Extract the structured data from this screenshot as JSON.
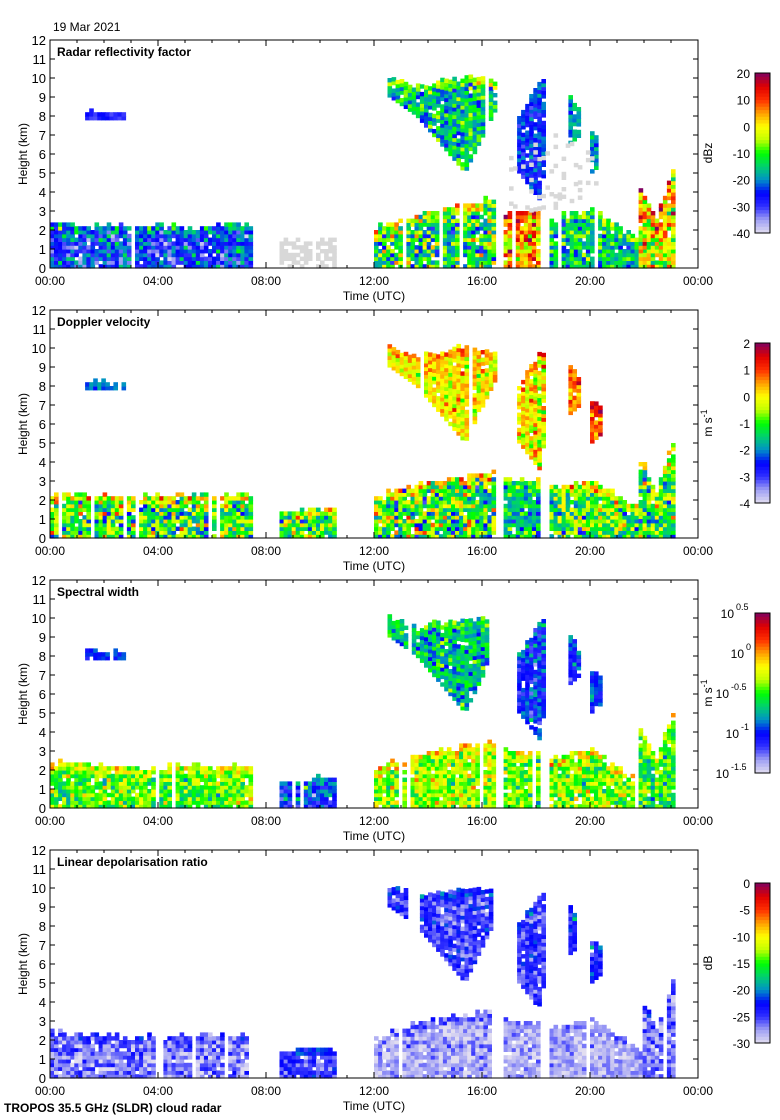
{
  "date": "19 Mar 2021",
  "footer": "TROPOS 35.5 GHz (SLDR) cloud radar",
  "colormap": [
    "#e2def0",
    "#a0a0f4",
    "#3030ff",
    "#0000ff",
    "#0090c8",
    "#00d070",
    "#00ff00",
    "#c0ff00",
    "#ffff00",
    "#ffa000",
    "#ff3000",
    "#e00000",
    "#800060"
  ],
  "no_signal_color": "#d8d8d8",
  "chart_data": [
    {
      "type": "heatmap",
      "title": "Radar reflectivity factor",
      "xlabel": "Time (UTC)",
      "ylabel": "Height (km)",
      "xlim": [
        0,
        24
      ],
      "ylim": [
        0,
        12
      ],
      "xticklabels": [
        "00:00",
        "04:00",
        "08:00",
        "12:00",
        "16:00",
        "20:00",
        "00:00"
      ],
      "yticklabels": [
        "0",
        "1",
        "2",
        "3",
        "4",
        "5",
        "6",
        "7",
        "8",
        "9",
        "10",
        "11",
        "12"
      ],
      "colorbar": {
        "unit": "dBz",
        "unit_sup": "",
        "range": [
          -40,
          20
        ],
        "ticklabels": [
          "20",
          "10",
          "0",
          "-10",
          "-20",
          "-30",
          "-40"
        ]
      },
      "var": "Z"
    },
    {
      "type": "heatmap",
      "title": "Doppler velocity",
      "xlabel": "Time (UTC)",
      "ylabel": "Height (km)",
      "xlim": [
        0,
        24
      ],
      "ylim": [
        0,
        12
      ],
      "xticklabels": [
        "00:00",
        "04:00",
        "08:00",
        "12:00",
        "16:00",
        "20:00",
        "00:00"
      ],
      "yticklabels": [
        "0",
        "1",
        "2",
        "3",
        "4",
        "5",
        "6",
        "7",
        "8",
        "9",
        "10",
        "11",
        "12"
      ],
      "colorbar": {
        "unit": "m s",
        "unit_sup": "-1",
        "range": [
          -4,
          2
        ],
        "ticklabels": [
          "2",
          "1",
          "0",
          "-1",
          "-2",
          "-3",
          "-4"
        ]
      },
      "var": "V"
    },
    {
      "type": "heatmap",
      "title": "Spectral width",
      "xlabel": "Time (UTC)",
      "ylabel": "Height (km)",
      "xlim": [
        0,
        24
      ],
      "ylim": [
        0,
        12
      ],
      "xticklabels": [
        "00:00",
        "04:00",
        "08:00",
        "12:00",
        "16:00",
        "20:00",
        "00:00"
      ],
      "yticklabels": [
        "0",
        "1",
        "2",
        "3",
        "4",
        "5",
        "6",
        "7",
        "8",
        "9",
        "10",
        "11",
        "12"
      ],
      "colorbar": {
        "unit": "m s",
        "unit_sup": "-1",
        "scale": "log10",
        "range": [
          -1.5,
          0.5
        ],
        "ticklabels": [
          "0.5",
          "0",
          "-0.5",
          "-1",
          "-1.5"
        ],
        "tickbase": "10"
      },
      "var": "W"
    },
    {
      "type": "heatmap",
      "title": "Linear depolarisation ratio",
      "xlabel": "Time (UTC)",
      "ylabel": "Height (km)",
      "xlim": [
        0,
        24
      ],
      "ylim": [
        0,
        12
      ],
      "xticklabels": [
        "00:00",
        "04:00",
        "08:00",
        "12:00",
        "16:00",
        "20:00",
        "00:00"
      ],
      "yticklabels": [
        "0",
        "1",
        "2",
        "3",
        "4",
        "5",
        "6",
        "7",
        "8",
        "9",
        "10",
        "11",
        "12"
      ],
      "colorbar": {
        "unit": "dB",
        "unit_sup": "",
        "range": [
          -30,
          0
        ],
        "ticklabels": [
          "0",
          "-5",
          "-10",
          "-15",
          "-20",
          "-25",
          "-30"
        ]
      },
      "var": "LDR"
    }
  ],
  "cloud_regions": [
    {
      "t": [
        0,
        7.5
      ],
      "base": [
        [
          0,
          0
        ],
        [
          7.5,
          0
        ]
      ],
      "top": [
        [
          0,
          2.3
        ],
        [
          3,
          2.1
        ],
        [
          7.5,
          2.2
        ]
      ],
      "Z": [
        -25,
        10
      ],
      "V": [
        -1,
        1.4
      ],
      "W": [
        -0.45,
        0.3
      ],
      "LDR": [
        -27,
        3
      ]
    },
    {
      "t": [
        1.3,
        2.7
      ],
      "base": [
        [
          1.3,
          7.8
        ],
        [
          2.7,
          7.8
        ]
      ],
      "top": [
        [
          1.3,
          8.2
        ],
        [
          2.7,
          8.1
        ]
      ],
      "Z": [
        -30,
        3
      ],
      "V": [
        -2.3,
        0.3
      ],
      "W": [
        -1.05,
        0.1
      ],
      "LDR": null
    },
    {
      "t": [
        8.5,
        10.5
      ],
      "base": [
        [
          8.5,
          0
        ],
        [
          10.5,
          0
        ]
      ],
      "top": [
        [
          8.5,
          1.4
        ],
        [
          10.5,
          1.5
        ]
      ],
      "Z": "no-signal",
      "V": [
        -1,
        1.2
      ],
      "W": [
        -1,
        0.3
      ],
      "LDR": [
        -25,
        3
      ]
    },
    {
      "t": [
        12,
        16.4
      ],
      "base": [
        [
          12,
          0
        ],
        [
          16.4,
          0
        ]
      ],
      "top": [
        [
          12,
          2.1
        ],
        [
          14,
          2.9
        ],
        [
          16.4,
          3.5
        ]
      ],
      "Z": [
        -12,
        14
      ],
      "V": [
        -1,
        1.5
      ],
      "W": [
        -0.35,
        0.3
      ],
      "LDR": [
        -28,
        3
      ]
    },
    {
      "t": [
        12.5,
        16.5
      ],
      "base": [
        [
          12.5,
          9
        ],
        [
          13.5,
          8
        ],
        [
          15.3,
          5
        ],
        [
          16.5,
          8.5
        ]
      ],
      "top": [
        [
          12.5,
          10
        ],
        [
          13.5,
          9.5
        ],
        [
          15.3,
          10
        ],
        [
          16.5,
          9.8
        ]
      ],
      "Z": [
        -15,
        10
      ],
      "V": [
        0,
        0.8
      ],
      "W": [
        -0.7,
        0.3
      ],
      "LDR": [
        -25,
        3
      ]
    },
    {
      "t": [
        16.8,
        18
      ],
      "base": [
        [
          16.8,
          0
        ],
        [
          18,
          0
        ]
      ],
      "top": [
        [
          16.8,
          3
        ],
        [
          18,
          2.8
        ]
      ],
      "Z": [
        3,
        12
      ],
      "V": [
        -1.5,
        1
      ],
      "W": [
        -0.45,
        0.3
      ],
      "LDR": [
        -28,
        2
      ]
    },
    {
      "t": [
        17.3,
        18.3
      ],
      "base": [
        [
          17.3,
          5
        ],
        [
          18.1,
          3.5
        ],
        [
          18.3,
          6
        ]
      ],
      "top": [
        [
          17.3,
          8
        ],
        [
          18.1,
          9.8
        ],
        [
          18.3,
          9.5
        ]
      ],
      "Z": [
        -25,
        6
      ],
      "V": [
        0,
        1
      ],
      "W": [
        -1,
        0.25
      ],
      "LDR": [
        -25,
        3
      ]
    },
    {
      "t": [
        18.5,
        22
      ],
      "base": [
        [
          18.5,
          0
        ],
        [
          22,
          0
        ]
      ],
      "top": [
        [
          18.5,
          2.6
        ],
        [
          20,
          3
        ],
        [
          22,
          1.2
        ]
      ],
      "Z": [
        -15,
        10
      ],
      "V": [
        -1,
        1.3
      ],
      "W": [
        -0.4,
        0.3
      ],
      "LDR": [
        -28,
        2
      ]
    },
    {
      "t": [
        19.2,
        19.6
      ],
      "base": [
        [
          19.2,
          6.5
        ],
        [
          19.6,
          7
        ]
      ],
      "top": [
        [
          19.2,
          9
        ],
        [
          19.6,
          8
        ]
      ],
      "Z": [
        -20,
        5
      ],
      "V": [
        0.5,
        0.8
      ],
      "W": [
        -1,
        0.2
      ],
      "LDR": [
        -24,
        3
      ]
    },
    {
      "t": [
        20,
        20.4
      ],
      "base": [
        [
          20,
          5
        ],
        [
          20.4,
          5.5
        ]
      ],
      "top": [
        [
          20,
          7.2
        ],
        [
          20.4,
          6.8
        ]
      ],
      "Z": [
        -20,
        5
      ],
      "V": [
        0.8,
        0.7
      ],
      "W": [
        -1,
        0.2
      ],
      "LDR": [
        -24,
        3
      ]
    },
    {
      "t": [
        21.8,
        23
      ],
      "base": [
        [
          21.8,
          0
        ],
        [
          23,
          0
        ]
      ],
      "top": [
        [
          21.8,
          4.2
        ],
        [
          22.4,
          2.5
        ],
        [
          23,
          5
        ]
      ],
      "Z": [
        0,
        15
      ],
      "V": [
        -1,
        1.3
      ],
      "W": [
        -0.5,
        0.3
      ],
      "LDR": [
        -27,
        3
      ]
    },
    {
      "t": [
        17,
        20.2
      ],
      "base": [
        [
          17,
          2.5
        ],
        [
          18.5,
          3
        ],
        [
          20.2,
          4
        ]
      ],
      "top": [
        [
          17,
          6
        ],
        [
          18.5,
          7
        ],
        [
          20.2,
          6
        ]
      ],
      "Z": "no-signal-sparse",
      "V": null,
      "W": null,
      "LDR": null
    }
  ]
}
